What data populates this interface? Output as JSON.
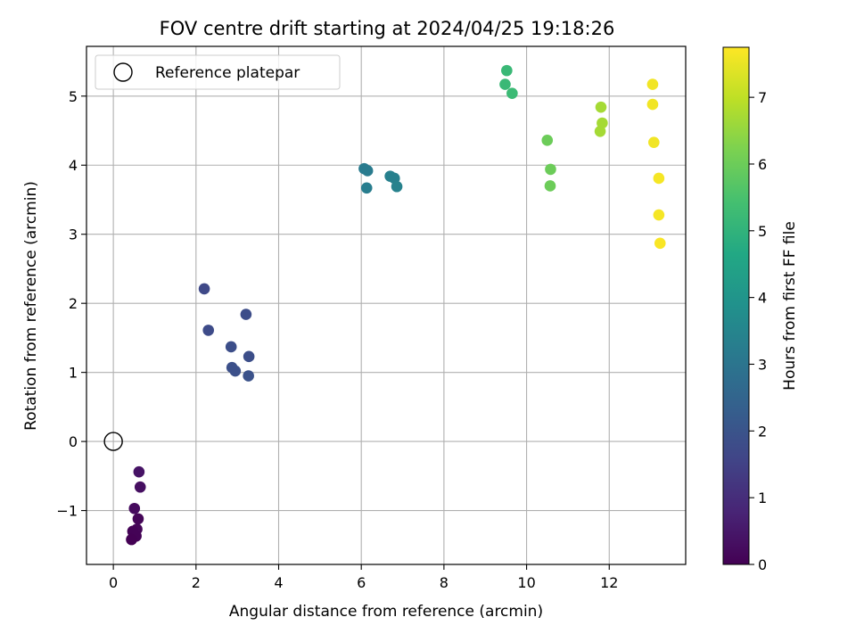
{
  "chart_data": {
    "type": "scatter",
    "title": "FOV centre drift starting at 2024/04/25 19:18:26",
    "xlabel": "Angular distance from reference (arcmin)",
    "ylabel": "Rotation from reference (arcmin)",
    "xlim": [
      -0.65,
      13.85
    ],
    "ylim": [
      -1.78,
      5.72
    ],
    "xticks": [
      0,
      2,
      4,
      6,
      8,
      10,
      12
    ],
    "yticks": [
      -1,
      0,
      1,
      2,
      3,
      4,
      5
    ],
    "xtick_labels": [
      "0",
      "2",
      "4",
      "6",
      "8",
      "10",
      "12"
    ],
    "ytick_labels": [
      "−1",
      "0",
      "1",
      "2",
      "3",
      "4",
      "5"
    ],
    "grid": true,
    "legend": {
      "position": "top-left",
      "entries": [
        {
          "label": "Reference platepar",
          "marker": "hollow-circle"
        }
      ]
    },
    "reference_point": {
      "x": 0,
      "y": 0
    },
    "colorbar": {
      "label": "Hours from first FF file",
      "range": [
        0,
        7.75
      ],
      "ticks": [
        0,
        1,
        2,
        3,
        4,
        5,
        6,
        7
      ],
      "tick_labels": [
        "0",
        "1",
        "2",
        "3",
        "4",
        "5",
        "6",
        "7"
      ],
      "colormap": "viridis"
    },
    "points": [
      {
        "x": 0.62,
        "y": -0.44,
        "c": 0.4
      },
      {
        "x": 0.65,
        "y": -0.66,
        "c": 0.3
      },
      {
        "x": 0.51,
        "y": -0.97,
        "c": 0.2
      },
      {
        "x": 0.6,
        "y": -1.12,
        "c": 0.1
      },
      {
        "x": 0.57,
        "y": -1.27,
        "c": 0.1
      },
      {
        "x": 0.47,
        "y": -1.3,
        "c": 0.05
      },
      {
        "x": 0.55,
        "y": -1.37,
        "c": 0.05
      },
      {
        "x": 0.44,
        "y": -1.42,
        "c": 0.0
      },
      {
        "x": 2.2,
        "y": 2.21,
        "c": 1.7
      },
      {
        "x": 2.3,
        "y": 1.61,
        "c": 1.75
      },
      {
        "x": 3.21,
        "y": 1.84,
        "c": 1.8
      },
      {
        "x": 2.85,
        "y": 1.37,
        "c": 1.85
      },
      {
        "x": 3.28,
        "y": 1.23,
        "c": 1.85
      },
      {
        "x": 2.87,
        "y": 1.07,
        "c": 1.9
      },
      {
        "x": 2.95,
        "y": 1.02,
        "c": 1.9
      },
      {
        "x": 3.27,
        "y": 0.95,
        "c": 1.95
      },
      {
        "x": 6.07,
        "y": 3.95,
        "c": 3.2
      },
      {
        "x": 6.15,
        "y": 3.92,
        "c": 3.2
      },
      {
        "x": 6.13,
        "y": 3.67,
        "c": 3.25
      },
      {
        "x": 6.7,
        "y": 3.84,
        "c": 3.35
      },
      {
        "x": 6.8,
        "y": 3.81,
        "c": 3.35
      },
      {
        "x": 6.86,
        "y": 3.69,
        "c": 3.4
      },
      {
        "x": 9.52,
        "y": 5.37,
        "c": 5.2
      },
      {
        "x": 9.48,
        "y": 5.17,
        "c": 5.2
      },
      {
        "x": 9.65,
        "y": 5.04,
        "c": 5.25
      },
      {
        "x": 10.5,
        "y": 4.36,
        "c": 6.0
      },
      {
        "x": 10.58,
        "y": 3.94,
        "c": 6.0
      },
      {
        "x": 10.57,
        "y": 3.7,
        "c": 6.0
      },
      {
        "x": 11.8,
        "y": 4.84,
        "c": 6.7
      },
      {
        "x": 11.83,
        "y": 4.61,
        "c": 6.7
      },
      {
        "x": 11.78,
        "y": 4.49,
        "c": 6.7
      },
      {
        "x": 13.05,
        "y": 5.17,
        "c": 7.6
      },
      {
        "x": 13.05,
        "y": 4.88,
        "c": 7.6
      },
      {
        "x": 13.08,
        "y": 4.33,
        "c": 7.6
      },
      {
        "x": 13.2,
        "y": 3.81,
        "c": 7.65
      },
      {
        "x": 13.2,
        "y": 3.28,
        "c": 7.65
      },
      {
        "x": 13.23,
        "y": 2.87,
        "c": 7.7
      }
    ]
  }
}
